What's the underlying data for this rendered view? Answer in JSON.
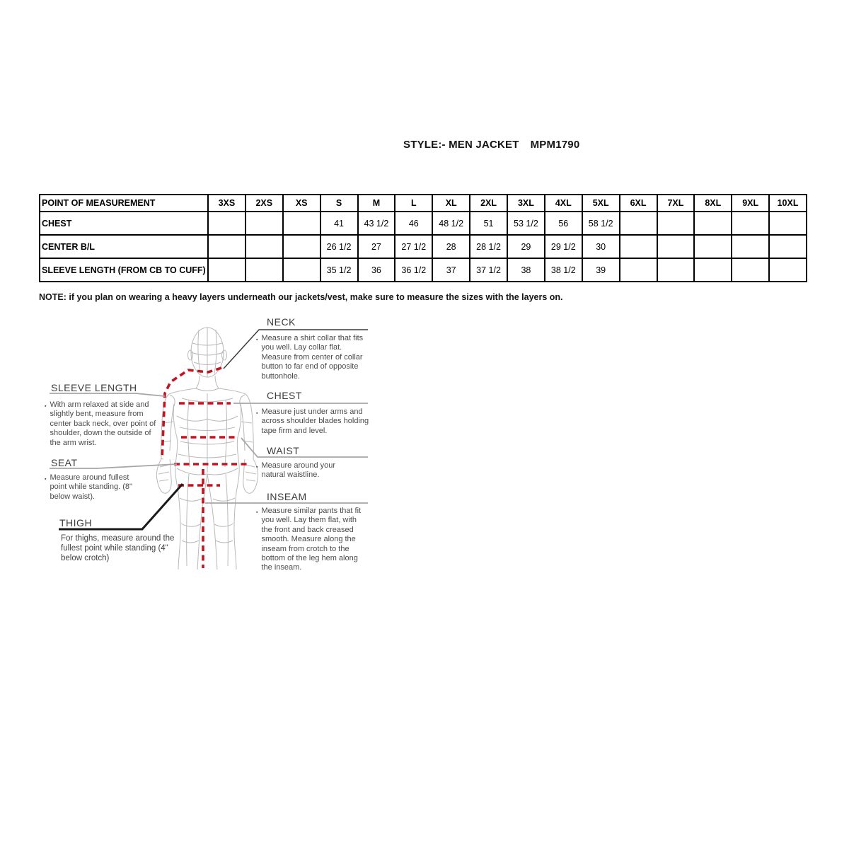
{
  "title": {
    "style_label": "STYLE:- MEN JACKET",
    "style_code": "MPM1790"
  },
  "size_chart": {
    "corner_header": "POINT OF MEASUREMENT",
    "sizes": [
      "3XS",
      "2XS",
      "XS",
      "S",
      "M",
      "L",
      "XL",
      "2XL",
      "3XL",
      "4XL",
      "5XL",
      "6XL",
      "7XL",
      "8XL",
      "9XL",
      "10XL"
    ],
    "rows": [
      {
        "label": "CHEST",
        "values": [
          "",
          "",
          "",
          "41",
          "43 1/2",
          "46",
          "48 1/2",
          "51",
          "53 1/2",
          "56",
          "58 1/2",
          "",
          "",
          "",
          "",
          ""
        ]
      },
      {
        "label": "CENTER B/L",
        "values": [
          "",
          "",
          "",
          "26 1/2",
          "27",
          "27 1/2",
          "28",
          "28 1/2",
          "29",
          "29 1/2",
          "30",
          "",
          "",
          "",
          "",
          ""
        ]
      },
      {
        "label": "SLEEVE LENGTH (FROM CB TO CUFF)",
        "values": [
          "",
          "",
          "",
          "35 1/2",
          "36",
          "36 1/2",
          "37",
          "37 1/2",
          "38",
          "38 1/2",
          "39",
          "",
          "",
          "",
          "",
          ""
        ]
      }
    ]
  },
  "note": "NOTE: if you plan on wearing a heavy layers underneath our jackets/vest, make sure to measure the sizes with the layers on.",
  "diagram": {
    "bullet": "▪",
    "annotations": {
      "sleeve_length": {
        "label": "SLEEVE LENGTH",
        "description": "With arm relaxed at side and slightly bent, measure from center back neck, over point of shoulder, down the outside of the arm wrist."
      },
      "seat": {
        "label": "SEAT",
        "description": "Measure around fullest point while standing. (8\" below waist)."
      },
      "thigh": {
        "label": "THIGH",
        "description": "For thighs, measure around the fullest point while standing (4\" below crotch)"
      },
      "neck": {
        "label": "NECK",
        "description": "Measure a shirt collar that fits you well. Lay collar flat. Measure from center of collar button to far end of opposite buttonhole."
      },
      "chest": {
        "label": "CHEST",
        "description": "Measure just under arms and across shoulder blades holding tape firm and level."
      },
      "waist": {
        "label": "WAIST",
        "description": "Measure around your natural waistline."
      },
      "inseam": {
        "label": "INSEAM",
        "description": "Measure similar pants that fit you well. Lay them flat, with the front and back creased smooth. Measure along the inseam from crotch to the bottom of the leg hem along the inseam."
      }
    },
    "colors": {
      "measure_line_red": "#c31422",
      "figure_gray": "#b9b9b9",
      "leader_gray": "#a6a6a6",
      "dark_leader": "#3c3c3c",
      "black_leader": "#1a1a1a"
    }
  }
}
